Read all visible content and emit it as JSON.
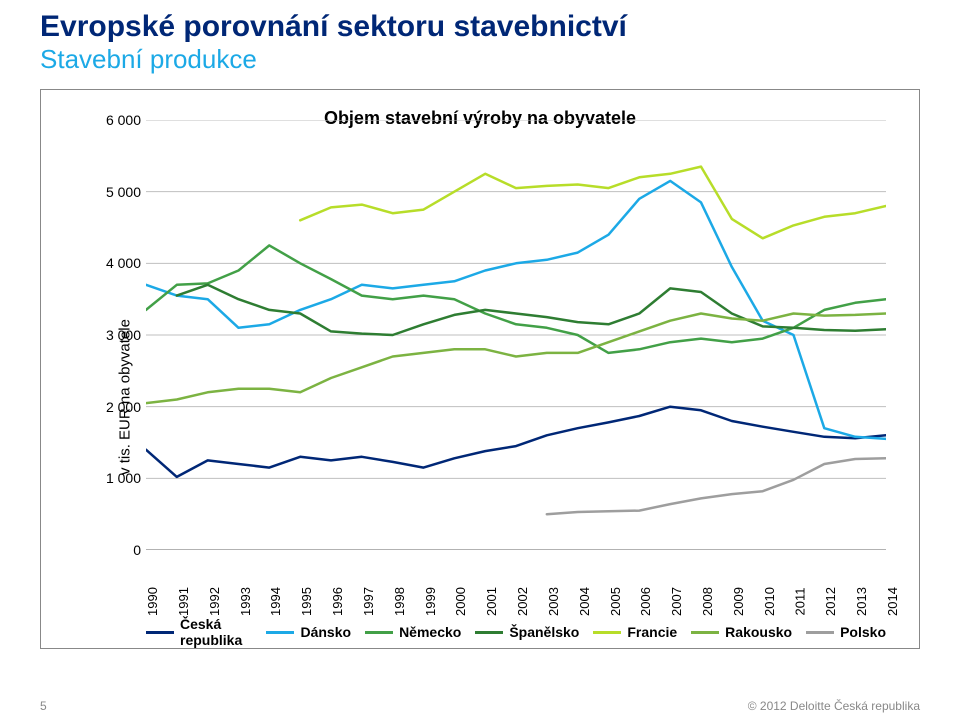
{
  "title": "Evropské porovnání sektoru stavebnictví",
  "subtitle": "Stavební produkce",
  "chart": {
    "type": "line",
    "title": "Objem stavební výroby na obyvatele",
    "background_color": "#ffffff",
    "border_color": "#888888",
    "yaxis": {
      "label": "v tis. EUR na obyvatele",
      "min": 0,
      "max": 6000,
      "tick_step": 1000,
      "ticks": [
        "0",
        "1 000",
        "2 000",
        "3 000",
        "4 000",
        "5 000",
        "6 000"
      ],
      "grid_color": "#bfbfbf",
      "label_fontsize": 15,
      "tick_fontsize": 14
    },
    "xaxis": {
      "categories": [
        "1990",
        "1991",
        "1992",
        "1993",
        "1994",
        "1995",
        "1996",
        "1997",
        "1998",
        "1999",
        "2000",
        "2001",
        "2002",
        "2003",
        "2004",
        "2005",
        "2006",
        "2007",
        "2008",
        "2009",
        "2010",
        "2011",
        "2012",
        "2013",
        "2014"
      ],
      "tick_fontsize": 13,
      "tick_rotation_deg": -90
    },
    "line_width": 2.5,
    "series": [
      {
        "name": "Česká republika",
        "color": "#002776",
        "values": [
          1400,
          1020,
          1250,
          1200,
          1150,
          1300,
          1250,
          1300,
          1230,
          1150,
          1280,
          1380,
          1450,
          1600,
          1700,
          1780,
          1870,
          2000,
          1950,
          1800,
          1720,
          1650,
          1580,
          1560,
          1600
        ]
      },
      {
        "name": "Dánsko",
        "color": "#1ca9e6",
        "values": [
          3700,
          3550,
          3500,
          3100,
          3150,
          3350,
          3500,
          3700,
          3650,
          3700,
          3750,
          3900,
          4000,
          4050,
          4150,
          4400,
          4900,
          5150,
          4850,
          3950,
          3200,
          3000,
          1700,
          1580,
          1550
        ]
      },
      {
        "name": "Německo",
        "color": "#42a047",
        "values": [
          3350,
          3700,
          3720,
          3900,
          4250,
          4000,
          3780,
          3550,
          3500,
          3550,
          3500,
          3300,
          3150,
          3100,
          3000,
          2750,
          2800,
          2900,
          2950,
          2900,
          2950,
          3100,
          3350,
          3450,
          3500
        ]
      },
      {
        "name": "Španělsko",
        "color": "#2e7d32",
        "values": [
          null,
          3550,
          3700,
          3500,
          3350,
          3300,
          3050,
          3020,
          3000,
          3150,
          3280,
          3350,
          3300,
          3250,
          3180,
          3150,
          3300,
          3650,
          3600,
          3300,
          3120,
          3100,
          3070,
          3060,
          3080
        ]
      },
      {
        "name": "Francie",
        "color": "#b7dd29",
        "values": [
          null,
          null,
          null,
          null,
          null,
          4600,
          4780,
          4820,
          4700,
          4750,
          5000,
          5250,
          5050,
          5080,
          5100,
          5050,
          5200,
          5250,
          5350,
          4620,
          4350,
          4530,
          4650,
          4700,
          4800
        ]
      },
      {
        "name": "Rakousko",
        "color": "#7cb342",
        "values": [
          2050,
          2100,
          2200,
          2250,
          2250,
          2200,
          2400,
          2550,
          2700,
          2750,
          2800,
          2800,
          2700,
          2750,
          2750,
          2900,
          3050,
          3200,
          3300,
          3230,
          3200,
          3300,
          3270,
          3280,
          3300
        ]
      },
      {
        "name": "Polsko",
        "color": "#9e9e9e",
        "values": [
          null,
          null,
          null,
          null,
          null,
          null,
          null,
          null,
          null,
          null,
          null,
          null,
          null,
          500,
          530,
          540,
          550,
          640,
          720,
          780,
          820,
          980,
          1200,
          1270,
          1280
        ]
      }
    ],
    "legend": {
      "position": "bottom",
      "fontsize": 14,
      "fontweight": "bold"
    }
  },
  "footer": {
    "page_number": "5",
    "copyright": "© 2012 Deloitte Česká republika"
  }
}
